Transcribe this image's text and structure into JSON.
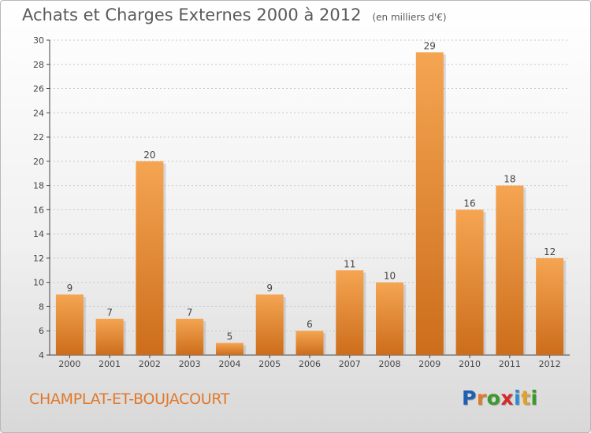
{
  "title": "Achats et Charges Externes 2000 à 2012",
  "unit": "(en milliers d'€)",
  "commune": "CHAMPLAT-ET-BOUJACOURT",
  "brand": [
    "P",
    "r",
    "o",
    "x",
    "i",
    "t",
    "i"
  ],
  "colors": {
    "bar_light": "#f5a552",
    "bar_dark": "#cc6d1b",
    "axis": "#444444",
    "grid": "#c8c8c8"
  },
  "chart_data": {
    "type": "bar",
    "categories": [
      "2000",
      "2001",
      "2002",
      "2003",
      "2004",
      "2005",
      "2006",
      "2007",
      "2008",
      "2009",
      "2010",
      "2011",
      "2012"
    ],
    "values": [
      9,
      7,
      20,
      7,
      5,
      9,
      6,
      11,
      10,
      29,
      16,
      18,
      12
    ],
    "ylim": [
      4,
      30
    ],
    "yticks": [
      4,
      6,
      8,
      10,
      12,
      14,
      16,
      18,
      20,
      22,
      24,
      26,
      28,
      30
    ],
    "grid": true
  }
}
